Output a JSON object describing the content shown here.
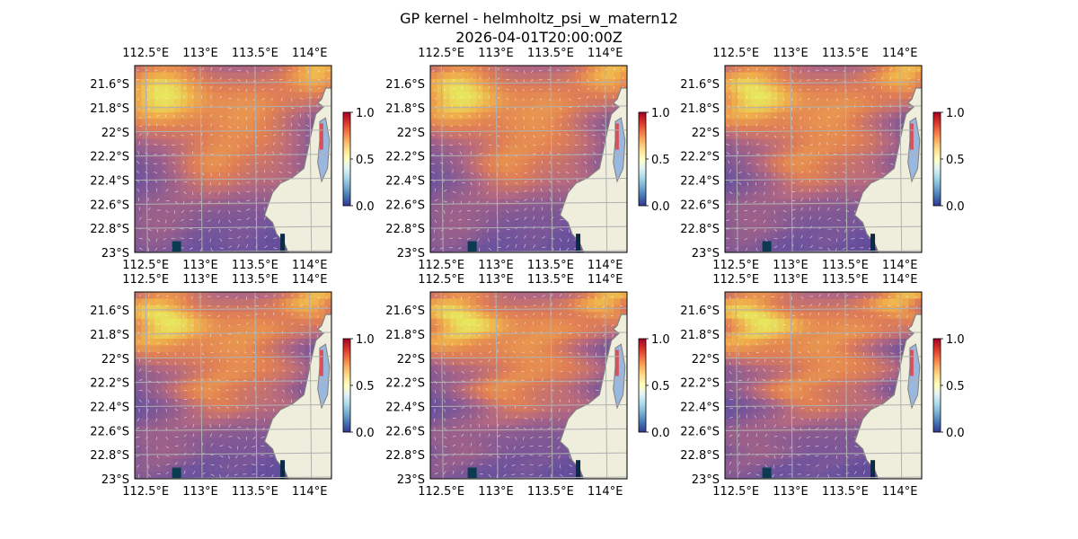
{
  "figure": {
    "title": "GP kernel - helmholtz_psi_w_matern12",
    "subtitle": "2026-04-01T20:00:00Z"
  },
  "chart_data": {
    "type": "heatmap",
    "panel_count": 6,
    "layout": {
      "rows": 2,
      "cols": 3
    },
    "extent": {
      "lon": [
        112.4,
        114.2
      ],
      "lat": [
        -23.0,
        -21.45
      ]
    },
    "lon_ticks": [
      112.5,
      113.0,
      113.5,
      114.0
    ],
    "lat_ticks": [
      -21.6,
      -21.8,
      -22.0,
      -22.2,
      -22.4,
      -22.6,
      -22.8,
      -23.0
    ],
    "lon_tick_labels": [
      "112.5°E",
      "113°E",
      "113.5°E",
      "114°E"
    ],
    "lat_tick_labels": [
      "21.6°S",
      "21.8°S",
      "22°S",
      "22.2°S",
      "22.4°S",
      "22.6°S",
      "22.8°S",
      "23°S"
    ],
    "colorbar": {
      "range": [
        0.0,
        1.0
      ],
      "ticks": [
        "0.0",
        "0.5",
        "1.0"
      ],
      "colormap": "RdYlBu_r"
    },
    "gridlines": true,
    "grid_color": "#b0b0b0",
    "land_color": "#efeedc",
    "ocean_color": "#9ab7dd",
    "coast_color": "#7f7f7f",
    "quiver": true,
    "quiver_color": "#ffffff"
  }
}
